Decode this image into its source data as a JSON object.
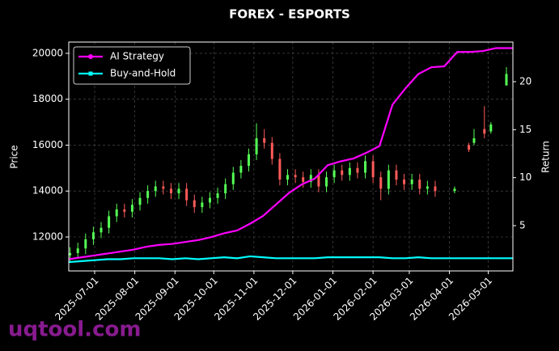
{
  "chart_data": {
    "type": "candlestick",
    "title": "FOREX - ESPORTS",
    "y_label": "Price",
    "y2_label": "Return",
    "watermark": "uqtool.com",
    "grid": true,
    "legend_loc": "upper left",
    "xlim": [
      "2025-06-11",
      "2026-05-20"
    ],
    "xticks": [
      "2025-07-01",
      "2025-08-01",
      "2025-09-01",
      "2025-10-01",
      "2025-11-01",
      "2025-12-01",
      "2026-01-01",
      "2026-02-01",
      "2026-03-01",
      "2026-04-01",
      "2026-05-01"
    ],
    "ylim": [
      10520,
      20490
    ],
    "yticks": [
      12000,
      14000,
      16000,
      18000,
      20000
    ],
    "y2lim": [
      0.28,
      24.13
    ],
    "y2ticks": [
      5,
      10,
      15,
      20
    ],
    "candles": {
      "up_color": "#55ff55",
      "down_color": "#ff5a5a",
      "x": [
        "2025-06-12",
        "2025-06-18",
        "2025-06-24",
        "2025-06-30",
        "2025-07-06",
        "2025-07-12",
        "2025-07-18",
        "2025-07-24",
        "2025-07-30",
        "2025-08-05",
        "2025-08-11",
        "2025-08-17",
        "2025-08-23",
        "2025-08-29",
        "2025-09-04",
        "2025-09-10",
        "2025-09-16",
        "2025-09-22",
        "2025-09-28",
        "2025-10-04",
        "2025-10-10",
        "2025-10-16",
        "2025-10-22",
        "2025-10-28",
        "2025-11-03",
        "2025-11-09",
        "2025-11-15",
        "2025-11-21",
        "2025-11-27",
        "2025-12-03",
        "2025-12-09",
        "2025-12-15",
        "2025-12-21",
        "2025-12-27",
        "2026-01-02",
        "2026-01-08",
        "2026-01-14",
        "2026-01-20",
        "2026-01-26",
        "2026-02-01",
        "2026-02-07",
        "2026-02-13",
        "2026-02-19",
        "2026-02-25",
        "2026-03-03",
        "2026-03-09",
        "2026-03-15",
        "2026-03-21",
        "2026-04-05",
        "2026-04-16",
        "2026-04-20",
        "2026-04-28",
        "2026-05-03",
        "2026-05-15"
      ],
      "open": [
        11200,
        11300,
        11500,
        11900,
        12200,
        12400,
        12900,
        13200,
        13100,
        13400,
        13700,
        14000,
        14200,
        14100,
        13900,
        14100,
        13600,
        13300,
        13500,
        13700,
        13900,
        14300,
        14800,
        15100,
        15600,
        16300,
        16100,
        15400,
        14500,
        14700,
        14600,
        14400,
        14700,
        14200,
        14600,
        14900,
        14700,
        15000,
        14800,
        15300,
        14600,
        14100,
        14900,
        14500,
        14300,
        14500,
        14100,
        14200,
        14000,
        16000,
        16100,
        16700,
        16600,
        18600
      ],
      "high": [
        11550,
        11750,
        12150,
        12450,
        12650,
        13150,
        13450,
        13450,
        13650,
        13950,
        14250,
        14450,
        14450,
        14350,
        14350,
        14350,
        13850,
        13750,
        13950,
        14150,
        14550,
        15050,
        15350,
        15850,
        16950,
        16700,
        16350,
        15650,
        14950,
        14950,
        14850,
        14950,
        14950,
        14850,
        15150,
        15150,
        15250,
        15250,
        15550,
        15550,
        14850,
        15150,
        15150,
        14750,
        14750,
        14750,
        14450,
        14450,
        14200,
        16100,
        16700,
        17700,
        17000,
        19400
      ],
      "low": [
        10950,
        11050,
        11250,
        11650,
        11950,
        12150,
        12650,
        12850,
        12850,
        13150,
        13450,
        13750,
        13850,
        13650,
        13650,
        13350,
        13050,
        13050,
        13250,
        13450,
        13650,
        14050,
        14550,
        14850,
        15350,
        15850,
        15150,
        14250,
        14250,
        14350,
        14150,
        14150,
        13950,
        13950,
        14350,
        14450,
        14450,
        14550,
        14550,
        14350,
        13600,
        13850,
        14250,
        14050,
        14050,
        13850,
        13850,
        13750,
        13900,
        15700,
        16000,
        16300,
        16500,
        18600
      ],
      "close": [
        11300,
        11500,
        11900,
        12200,
        12400,
        12900,
        13200,
        13100,
        13400,
        13700,
        14000,
        14200,
        14100,
        13900,
        14100,
        13600,
        13300,
        13500,
        13700,
        13900,
        14300,
        14800,
        15100,
        15600,
        16300,
        16100,
        15400,
        14500,
        14700,
        14600,
        14400,
        14700,
        14200,
        14600,
        14900,
        14700,
        15000,
        14800,
        15300,
        14600,
        14100,
        14900,
        14500,
        14300,
        14500,
        14100,
        14200,
        14000,
        14100,
        15800,
        16300,
        16500,
        16900,
        19100
      ]
    },
    "x": [
      "2025-06-11",
      "2025-06-21",
      "2025-07-01",
      "2025-07-11",
      "2025-07-21",
      "2025-07-31",
      "2025-08-10",
      "2025-08-20",
      "2025-08-30",
      "2025-09-09",
      "2025-09-19",
      "2025-09-29",
      "2025-10-09",
      "2025-10-19",
      "2025-10-29",
      "2025-11-08",
      "2025-11-18",
      "2025-11-28",
      "2025-12-08",
      "2025-12-18",
      "2025-12-28",
      "2026-01-07",
      "2026-01-17",
      "2026-01-27",
      "2026-02-06",
      "2026-02-16",
      "2026-02-26",
      "2026-03-08",
      "2026-03-18",
      "2026-03-28",
      "2026-04-07",
      "2026-04-17",
      "2026-04-27",
      "2026-05-07",
      "2026-05-17",
      "2026-05-20"
    ],
    "series": [
      {
        "name": "AI Strategy",
        "color": "#ff00ff",
        "axis": "y2",
        "values": [
          1.5,
          1.7,
          1.9,
          2.1,
          2.3,
          2.5,
          2.8,
          3.0,
          3.1,
          3.3,
          3.5,
          3.8,
          4.2,
          4.5,
          5.2,
          6.0,
          7.2,
          8.4,
          9.3,
          9.9,
          11.3,
          11.7,
          12.0,
          12.6,
          13.3,
          17.6,
          19.3,
          20.8,
          21.5,
          21.6,
          23.1,
          23.1,
          23.2,
          23.5,
          23.5,
          23.5
        ]
      },
      {
        "name": "Buy-and-Hold",
        "color": "#00ffff",
        "axis": "y2",
        "values": [
          1.2,
          1.3,
          1.4,
          1.5,
          1.5,
          1.6,
          1.6,
          1.6,
          1.5,
          1.6,
          1.5,
          1.6,
          1.7,
          1.6,
          1.8,
          1.7,
          1.6,
          1.6,
          1.6,
          1.6,
          1.7,
          1.7,
          1.7,
          1.7,
          1.7,
          1.6,
          1.6,
          1.7,
          1.6,
          1.6,
          1.6,
          1.6,
          1.6,
          1.6,
          1.6,
          1.6
        ]
      }
    ]
  }
}
